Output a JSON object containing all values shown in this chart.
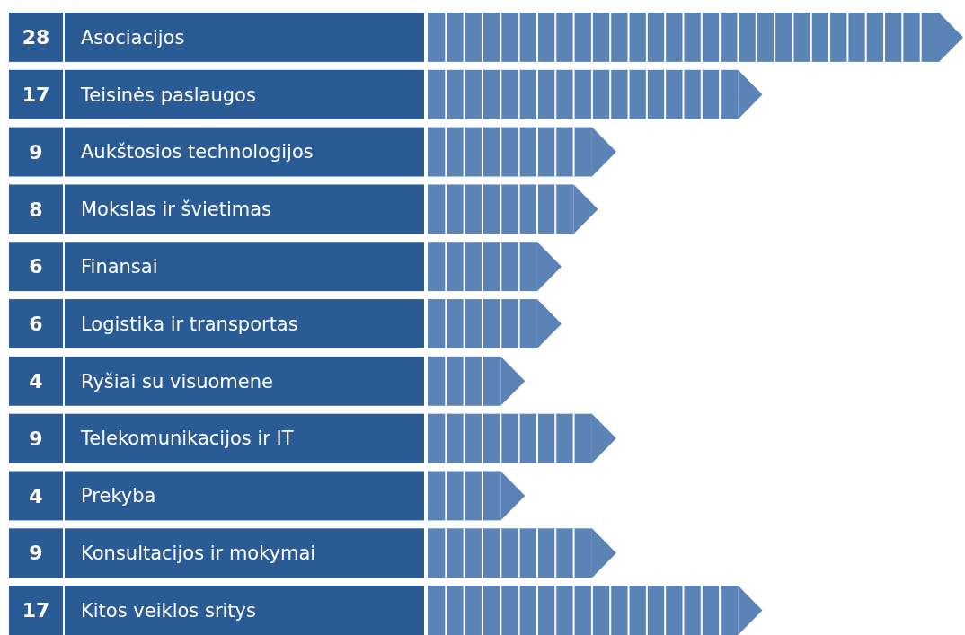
{
  "chart_data": {
    "type": "bar",
    "orientation": "horizontal",
    "data_labels": true,
    "color": "#5b83b5",
    "categories": [
      "Asociacijos",
      "Teisinės paslaugos",
      "Aukštosios technologijos",
      "Mokslas ir švietimas",
      "Finansai",
      "Logistika ir transportas",
      "Ryšiai su visuomene",
      "Telekomunikacijos ir IT",
      "Prekyba",
      "Konsultacijos ir mokymai",
      "Kitos veiklos sritys"
    ],
    "values": [
      28,
      17,
      9,
      8,
      6,
      6,
      4,
      9,
      4,
      9,
      17
    ]
  }
}
